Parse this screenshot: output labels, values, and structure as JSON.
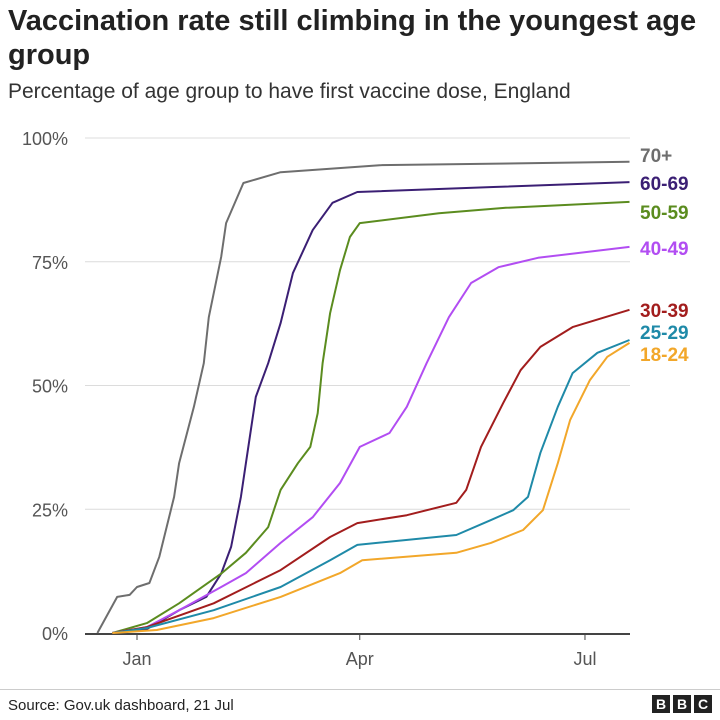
{
  "title": "Vaccination rate still climbing in the youngest age group",
  "subtitle": "Percentage of age group to have first vaccine dose, England",
  "source": "Source: Gov.uk dashboard, 21 Jul",
  "logo_text": "BBC",
  "chart_data": {
    "type": "line",
    "title": "Vaccination rate still climbing in the youngest age group",
    "subtitle": "Percentage of age group to have first vaccine dose, England",
    "xlabel": "",
    "ylabel": "",
    "ylim": [
      0,
      100
    ],
    "yticks": [
      0,
      25,
      50,
      75,
      100
    ],
    "ytick_labels": [
      "0%",
      "25%",
      "50%",
      "75%",
      "100%"
    ],
    "xticks": [
      {
        "date": "2021-01-01",
        "label": "Jan"
      },
      {
        "date": "2021-04-01",
        "label": "Apr"
      },
      {
        "date": "2021-07-01",
        "label": "Jul"
      }
    ],
    "grid": "horizontal",
    "legend": "direct labels at line ends (right)",
    "series": [
      {
        "name": "70+",
        "color": "#6e6e6e",
        "points": [
          [
            "2020-12-16",
            0
          ],
          [
            "2020-12-24",
            7.3
          ],
          [
            "2020-12-29",
            7.7
          ],
          [
            "2021-01-01",
            9.3
          ],
          [
            "2021-01-06",
            10.1
          ],
          [
            "2021-01-10",
            15.4
          ],
          [
            "2021-01-16",
            27.5
          ],
          [
            "2021-01-18",
            34.3
          ],
          [
            "2021-01-24",
            45.7
          ],
          [
            "2021-01-28",
            54.5
          ],
          [
            "2021-01-30",
            63.8
          ],
          [
            "2021-02-04",
            76
          ],
          [
            "2021-02-06",
            82.8
          ],
          [
            "2021-02-13",
            90.9
          ],
          [
            "2021-02-28",
            93.1
          ],
          [
            "2021-04-09",
            94.5
          ],
          [
            "2021-07-19",
            95.2
          ]
        ]
      },
      {
        "name": "60-69",
        "color": "#3b1f74",
        "points": [
          [
            "2020-12-22",
            0
          ],
          [
            "2021-01-05",
            0.8
          ],
          [
            "2021-01-18",
            4.6
          ],
          [
            "2021-01-29",
            7.3
          ],
          [
            "2021-02-04",
            12
          ],
          [
            "2021-02-08",
            17.4
          ],
          [
            "2021-02-12",
            27.5
          ],
          [
            "2021-02-14",
            34.3
          ],
          [
            "2021-02-18",
            47.7
          ],
          [
            "2021-02-23",
            54.5
          ],
          [
            "2021-02-28",
            62.6
          ],
          [
            "2021-03-05",
            72.7
          ],
          [
            "2021-03-13",
            81.4
          ],
          [
            "2021-03-21",
            86.9
          ],
          [
            "2021-03-31",
            89.1
          ],
          [
            "2021-05-25",
            90.1
          ],
          [
            "2021-07-19",
            91.1
          ]
        ]
      },
      {
        "name": "50-59",
        "color": "#5b8c1f",
        "points": [
          [
            "2020-12-22",
            0
          ],
          [
            "2021-01-05",
            2
          ],
          [
            "2021-01-18",
            6
          ],
          [
            "2021-02-04",
            12
          ],
          [
            "2021-02-14",
            16.2
          ],
          [
            "2021-02-23",
            21.4
          ],
          [
            "2021-02-28",
            28.9
          ],
          [
            "2021-03-07",
            34.3
          ],
          [
            "2021-03-12",
            37.6
          ],
          [
            "2021-03-15",
            44.4
          ],
          [
            "2021-03-17",
            54.5
          ],
          [
            "2021-03-20",
            64.6
          ],
          [
            "2021-03-24",
            73.3
          ],
          [
            "2021-03-28",
            80
          ],
          [
            "2021-04-01",
            82.8
          ],
          [
            "2021-05-03",
            84.8
          ],
          [
            "2021-05-30",
            85.9
          ],
          [
            "2021-07-19",
            87.1
          ]
        ]
      },
      {
        "name": "40-49",
        "color": "#b24df2",
        "points": [
          [
            "2020-12-22",
            0
          ],
          [
            "2021-01-05",
            1.2
          ],
          [
            "2021-01-18",
            4.6
          ],
          [
            "2021-02-04",
            9.3
          ],
          [
            "2021-02-14",
            12.1
          ],
          [
            "2021-02-28",
            18.2
          ],
          [
            "2021-03-13",
            23.4
          ],
          [
            "2021-03-24",
            30.3
          ],
          [
            "2021-04-01",
            37.6
          ],
          [
            "2021-04-13",
            40.4
          ],
          [
            "2021-04-20",
            45.7
          ],
          [
            "2021-04-28",
            54.5
          ],
          [
            "2021-05-07",
            63.8
          ],
          [
            "2021-05-16",
            70.7
          ],
          [
            "2021-05-27",
            73.9
          ],
          [
            "2021-06-12",
            75.8
          ],
          [
            "2021-07-19",
            78
          ]
        ]
      },
      {
        "name": "30-39",
        "color": "#a21d1d",
        "points": [
          [
            "2020-12-22",
            0
          ],
          [
            "2021-01-05",
            1.2
          ],
          [
            "2021-02-01",
            6
          ],
          [
            "2021-02-28",
            12.7
          ],
          [
            "2021-03-20",
            19.4
          ],
          [
            "2021-03-31",
            22.2
          ],
          [
            "2021-04-20",
            23.8
          ],
          [
            "2021-05-10",
            26.3
          ],
          [
            "2021-05-14",
            28.9
          ],
          [
            "2021-05-20",
            37.6
          ],
          [
            "2021-05-29",
            46.5
          ],
          [
            "2021-06-05",
            53.1
          ],
          [
            "2021-06-13",
            57.8
          ],
          [
            "2021-06-26",
            61.8
          ],
          [
            "2021-07-19",
            65.3
          ]
        ]
      },
      {
        "name": "25-29",
        "color": "#1f8aa8",
        "points": [
          [
            "2020-12-22",
            0
          ],
          [
            "2021-01-05",
            1
          ],
          [
            "2021-02-01",
            4.6
          ],
          [
            "2021-02-28",
            9.3
          ],
          [
            "2021-03-20",
            14.7
          ],
          [
            "2021-03-31",
            17.8
          ],
          [
            "2021-05-10",
            19.8
          ],
          [
            "2021-05-24",
            22.8
          ],
          [
            "2021-06-02",
            24.8
          ],
          [
            "2021-06-08",
            27.5
          ],
          [
            "2021-06-13",
            36.4
          ],
          [
            "2021-06-20",
            45.7
          ],
          [
            "2021-06-26",
            52.5
          ],
          [
            "2021-07-06",
            56.6
          ],
          [
            "2021-07-19",
            59.2
          ]
        ]
      },
      {
        "name": "18-24",
        "color": "#f2a72a",
        "points": [
          [
            "2020-12-22",
            0
          ],
          [
            "2021-01-09",
            0.6
          ],
          [
            "2021-02-01",
            3
          ],
          [
            "2021-02-28",
            7.3
          ],
          [
            "2021-03-24",
            12.1
          ],
          [
            "2021-04-02",
            14.7
          ],
          [
            "2021-05-10",
            16.2
          ],
          [
            "2021-05-24",
            18.2
          ],
          [
            "2021-06-06",
            20.8
          ],
          [
            "2021-06-14",
            24.8
          ],
          [
            "2021-06-20",
            34.3
          ],
          [
            "2021-06-25",
            43
          ],
          [
            "2021-07-03",
            51.1
          ],
          [
            "2021-07-10",
            55.8
          ],
          [
            "2021-07-19",
            58.6
          ]
        ]
      }
    ]
  }
}
